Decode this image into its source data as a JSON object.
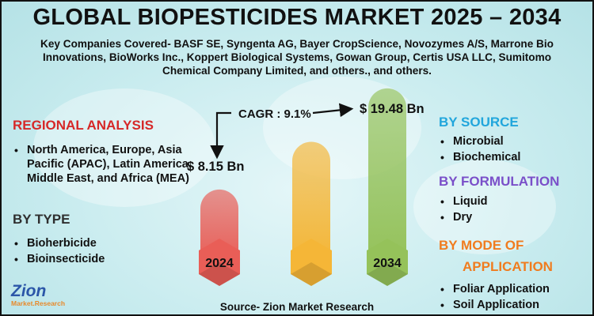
{
  "title": "GLOBAL BIOPESTICIDES MARKET 2025 – 2034",
  "subtitle": "Key Companies Covered- BASF SE, Syngenta AG, Bayer CropScience, Novozymes A/S, Marrone Bio Innovations, BioWorks Inc., Koppert Biological Systems, Gowan Group, Certis USA LLC, Sumitomo Chemical Company Limited, and others., and others.",
  "regional": {
    "heading": "REGIONAL ANALYSIS",
    "items": [
      "North America, Europe, Asia Pacific (APAC), Latin America, Middle East, and Africa (MEA)"
    ]
  },
  "by_type": {
    "heading": "BY TYPE",
    "items": [
      "Bioherbicide",
      "Bioinsecticide"
    ]
  },
  "by_source": {
    "heading": "BY SOURCE",
    "items": [
      "Microbial",
      "Biochemical"
    ]
  },
  "by_formulation": {
    "heading": "BY FORMULATION",
    "items": [
      "Liquid",
      "Dry"
    ]
  },
  "by_mode": {
    "heading_line1": "BY MODE OF",
    "heading_line2": "APPLICATION",
    "items": [
      "Foliar Application",
      "Soil Application"
    ]
  },
  "cagr_label": "CAGR : 9.1%",
  "source": "Source- Zion Market Research",
  "logo": {
    "main": "Zion",
    "sub": "Market.Research"
  },
  "colors": {
    "bar_2024": "#e95e57",
    "bar_mid": "#f5b637",
    "bar_2034": "#95c25a",
    "heading_red": "#d62828",
    "heading_blue": "#21a6dc",
    "heading_purple": "#7a4fc9",
    "heading_orange": "#f07c1f"
  },
  "chart_data": {
    "type": "bar",
    "categories": [
      "2024",
      "",
      "2034"
    ],
    "values": [
      8.15,
      13.5,
      19.48
    ],
    "value_labels": [
      "$ 8.15 Bn",
      "",
      "$ 19.48 Bn"
    ],
    "cagr": "9.1%",
    "units": "USD Billion",
    "ylim": [
      0,
      20
    ]
  }
}
